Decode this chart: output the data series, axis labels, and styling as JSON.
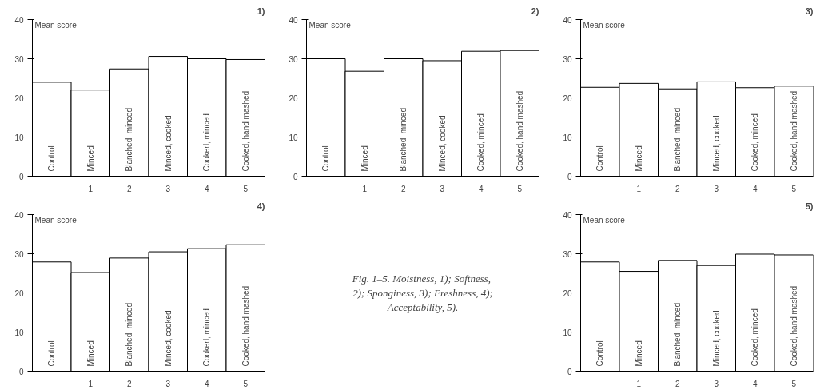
{
  "chart_data": [
    {
      "type": "bar",
      "title": "1)",
      "ylabel": "Mean score",
      "x": [
        0,
        1,
        2,
        3,
        4,
        5
      ],
      "values": [
        24.0,
        22.0,
        27.4,
        30.6,
        30.0,
        29.8
      ],
      "color": "#ffffff",
      "xlim": [
        -0.5,
        5.5
      ],
      "xticks": [
        1,
        2,
        3,
        4,
        5
      ],
      "ylim": [
        0,
        40
      ],
      "yticks": [
        0,
        10,
        20,
        30,
        40
      ],
      "grid": false,
      "annotations": [
        {
          "text": "Control",
          "x": 0,
          "y": 0
        },
        {
          "text": "Minced",
          "x": 1,
          "y": 0
        },
        {
          "text": "Blanched, minced",
          "x": 2,
          "y": 0
        },
        {
          "text": "Minced, cooked",
          "x": 3,
          "y": 0
        },
        {
          "text": "Cooked, minced",
          "x": 4,
          "y": 0
        },
        {
          "text": "Cooked, hand mashed",
          "x": 5,
          "y": 0
        }
      ]
    },
    {
      "type": "bar",
      "title": "2)",
      "ylabel": "Mean score",
      "x": [
        0,
        1,
        2,
        3,
        4,
        5
      ],
      "values": [
        30.0,
        26.8,
        30.0,
        29.5,
        31.9,
        32.1
      ],
      "color": "#ffffff",
      "xlim": [
        -0.5,
        5.5
      ],
      "xticks": [
        1,
        2,
        3,
        4,
        5
      ],
      "ylim": [
        0,
        40
      ],
      "yticks": [
        0,
        10,
        20,
        30,
        40
      ],
      "grid": false,
      "annotations": [
        {
          "text": "Control",
          "x": 0,
          "y": 0
        },
        {
          "text": "Minced",
          "x": 1,
          "y": 0
        },
        {
          "text": "Blanched, minced",
          "x": 2,
          "y": 0
        },
        {
          "text": "Minced, cooked",
          "x": 3,
          "y": 0
        },
        {
          "text": "Cooked, minced",
          "x": 4,
          "y": 0
        },
        {
          "text": "Cooked, hand mashed",
          "x": 5,
          "y": 0
        }
      ]
    },
    {
      "type": "bar",
      "title": "3)",
      "ylabel": "Mean score",
      "x": [
        0,
        1,
        2,
        3,
        4,
        5
      ],
      "values": [
        22.7,
        23.7,
        22.3,
        24.1,
        22.6,
        23.0
      ],
      "color": "#ffffff",
      "xlim": [
        -0.5,
        5.5
      ],
      "xticks": [
        1,
        2,
        3,
        4,
        5
      ],
      "ylim": [
        0,
        40
      ],
      "yticks": [
        0,
        10,
        20,
        30,
        40
      ],
      "grid": false,
      "annotations": [
        {
          "text": "Control",
          "x": 0,
          "y": 0
        },
        {
          "text": "Minced",
          "x": 1,
          "y": 0
        },
        {
          "text": "Blanched, minced",
          "x": 2,
          "y": 0
        },
        {
          "text": "Minced, cooked",
          "x": 3,
          "y": 0
        },
        {
          "text": "Cooked, minced",
          "x": 4,
          "y": 0
        },
        {
          "text": "Cooked, hand mashed",
          "x": 5,
          "y": 0
        }
      ]
    },
    {
      "type": "bar",
      "title": "4)",
      "ylabel": "Mean score",
      "x": [
        0,
        1,
        2,
        3,
        4,
        5
      ],
      "values": [
        27.9,
        25.2,
        28.9,
        30.5,
        31.3,
        32.3
      ],
      "color": "#ffffff",
      "xlim": [
        -0.5,
        5.5
      ],
      "xticks": [
        1,
        2,
        3,
        4,
        5
      ],
      "ylim": [
        0,
        40
      ],
      "yticks": [
        0,
        10,
        20,
        30,
        40
      ],
      "grid": false,
      "annotations": [
        {
          "text": "Control",
          "x": 0,
          "y": 0
        },
        {
          "text": "Minced",
          "x": 1,
          "y": 0
        },
        {
          "text": "Blanched, minced",
          "x": 2,
          "y": 0
        },
        {
          "text": "Minced, cooked",
          "x": 3,
          "y": 0
        },
        {
          "text": "Cooked, minced",
          "x": 4,
          "y": 0
        },
        {
          "text": "Cooked, hand mashed",
          "x": 5,
          "y": 0
        }
      ]
    },
    {
      "type": "other",
      "annotations": [
        "Fig. 1–5.  Moistness, 1); Softness, 2); Sponginess, 3); Freshness, 4); Acceptability, 5)."
      ]
    },
    {
      "type": "bar",
      "title": "5)",
      "ylabel": "Mean score",
      "x": [
        0,
        1,
        2,
        3,
        4,
        5
      ],
      "values": [
        27.9,
        25.5,
        28.3,
        27.0,
        29.9,
        29.7
      ],
      "color": "#ffffff",
      "xlim": [
        -0.5,
        5.5
      ],
      "xticks": [
        1,
        2,
        3,
        4,
        5
      ],
      "ylim": [
        0,
        40
      ],
      "yticks": [
        0,
        10,
        20,
        30,
        40
      ],
      "grid": false,
      "annotations": [
        {
          "text": "Control",
          "x": 0,
          "y": 0
        },
        {
          "text": "Minced",
          "x": 1,
          "y": 0
        },
        {
          "text": "Blanched, minced",
          "x": 2,
          "y": 0
        },
        {
          "text": "Minced, cooked",
          "x": 3,
          "y": 0
        },
        {
          "text": "Cooked, minced",
          "x": 4,
          "y": 0
        },
        {
          "text": "Cooked, hand mashed",
          "x": 5,
          "y": 0
        }
      ]
    }
  ]
}
